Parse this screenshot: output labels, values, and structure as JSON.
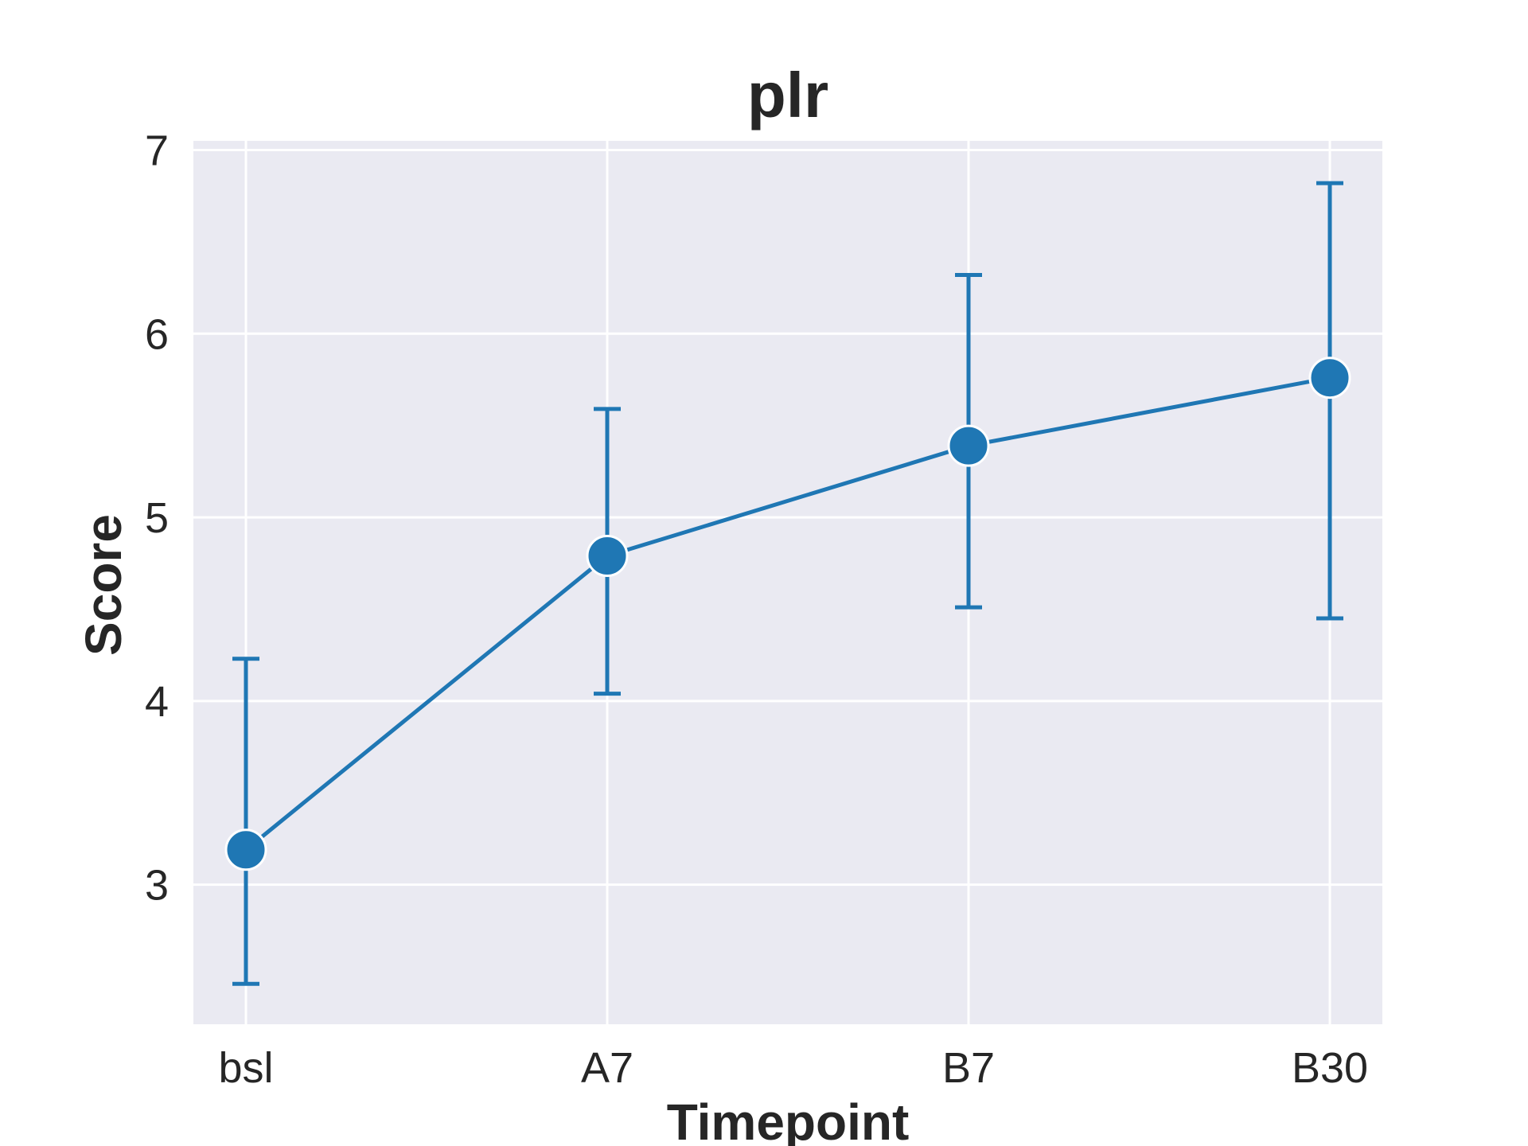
{
  "chart_data": {
    "type": "line",
    "title": "plr",
    "xlabel": "Timepoint",
    "ylabel": "Score",
    "categories": [
      "bsl",
      "A7",
      "B7",
      "B30"
    ],
    "ylim": [
      2.24,
      7.05
    ],
    "yticks": [
      3,
      4,
      5,
      6,
      7
    ],
    "ytick_labels": [
      "3",
      "4",
      "5",
      "6",
      "7"
    ],
    "grid": true,
    "series": [
      {
        "name": "plr",
        "color": "#1f77b4",
        "values": [
          3.19,
          4.79,
          5.39,
          5.76
        ],
        "err_low": [
          2.46,
          4.04,
          4.51,
          4.45
        ],
        "err_high": [
          4.23,
          5.59,
          6.32,
          6.82
        ]
      }
    ]
  }
}
